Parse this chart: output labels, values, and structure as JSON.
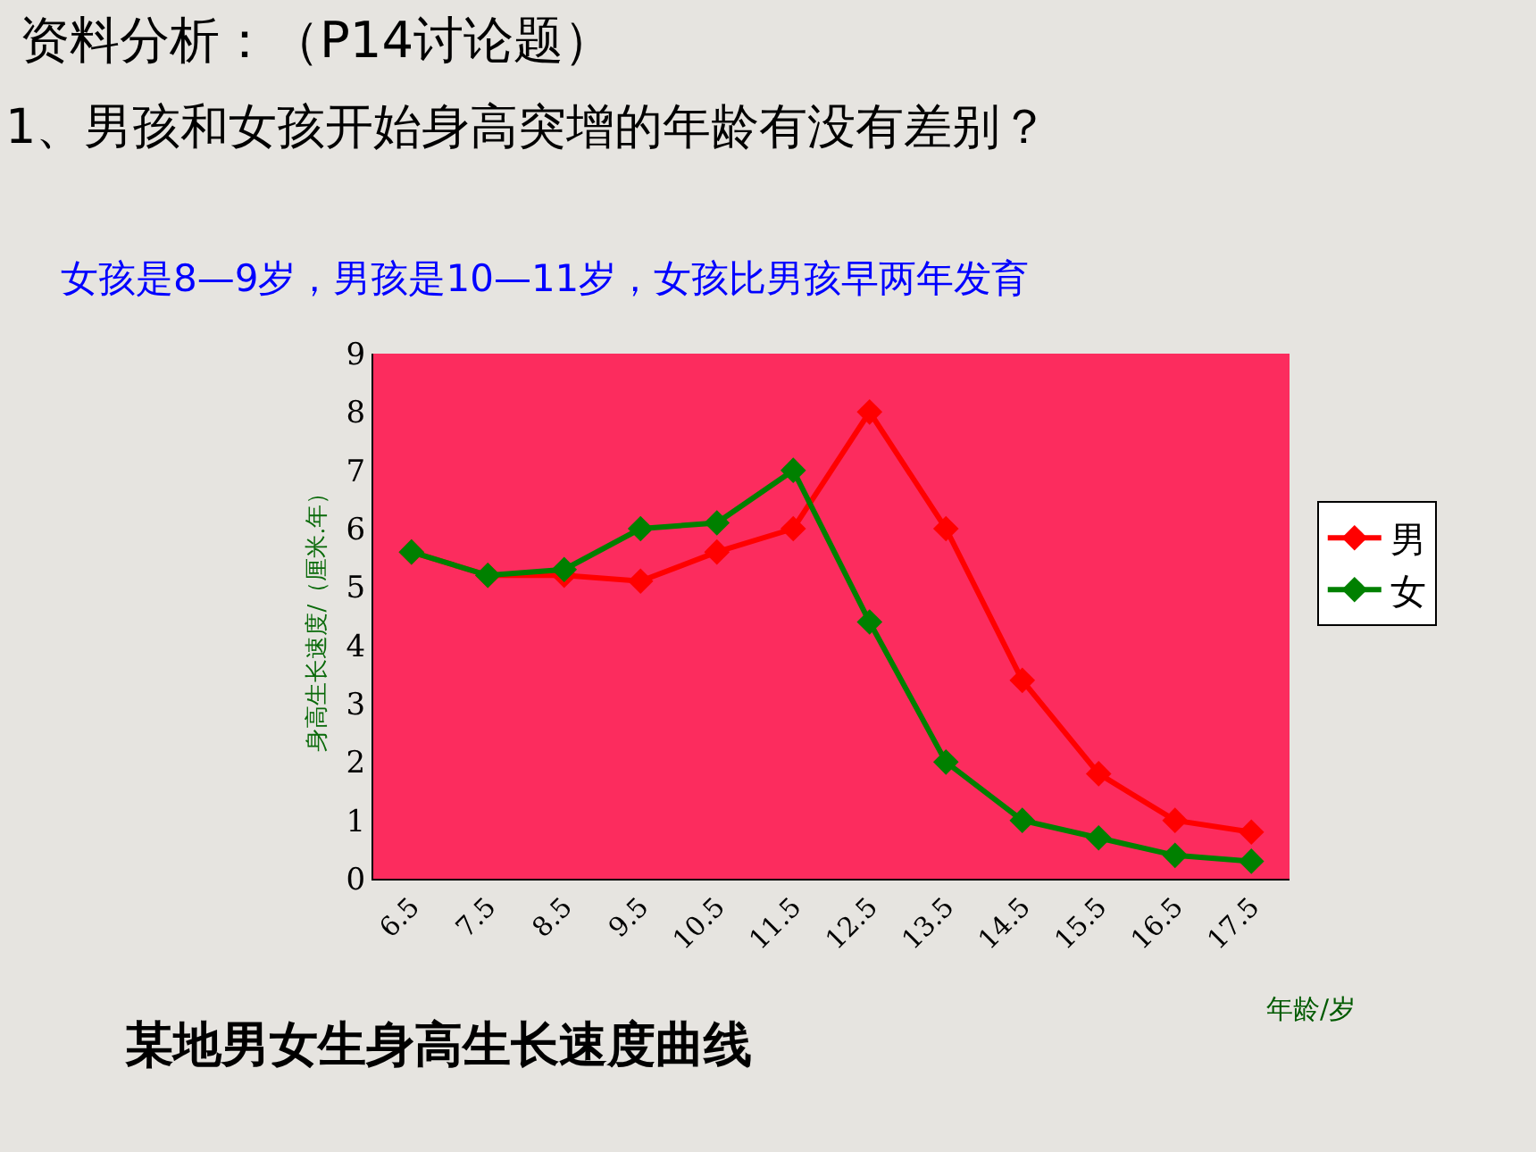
{
  "chart_data": {
    "type": "line",
    "title": "资料分析：（P14讨论题）",
    "subtitle": "1、男孩和女孩开始身高突增的年龄有没有差别？",
    "xlabel": "年龄/岁",
    "ylabel": "身高生长速度/（厘米.年）",
    "annotations": [
      "女孩是8—9岁，男孩是10—11岁，女孩比男孩早两年发育",
      "某地男女生身高生长速度曲线"
    ],
    "categories": [
      "6.5",
      "7.5",
      "8.5",
      "9.5",
      "10.5",
      "11.5",
      "12.5",
      "13.5",
      "14.5",
      "15.5",
      "16.5",
      "17.5"
    ],
    "series": [
      {
        "name": "男",
        "color": "#ff0000",
        "values": [
          5.6,
          5.2,
          5.2,
          5.1,
          5.6,
          6.0,
          8.0,
          6.0,
          3.4,
          1.8,
          1.0,
          0.8
        ]
      },
      {
        "name": "女",
        "color": "#008000",
        "values": [
          5.6,
          5.2,
          5.3,
          6.0,
          6.1,
          7.0,
          4.4,
          2.0,
          1.0,
          0.7,
          0.4,
          0.3
        ]
      }
    ],
    "ylim": [
      0,
      9
    ],
    "yticks": [
      0,
      1,
      2,
      3,
      4,
      5,
      6,
      7,
      8,
      9
    ],
    "grid": false,
    "legend": "right",
    "marker": "diamond",
    "line_style": "solid"
  }
}
